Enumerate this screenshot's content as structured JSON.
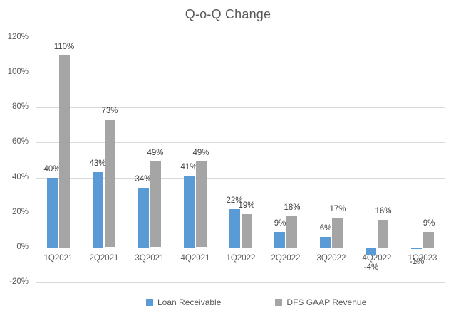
{
  "title": "Q-o-Q Change",
  "colors": {
    "series_blue": "#5B9BD5",
    "series_gray": "#A5A5A5",
    "gridline": "#D9D9D9",
    "axis_text": "#595959",
    "data_label_text": "#404040",
    "title_text": "#595959",
    "background": "#FFFFFF"
  },
  "chart_data": {
    "type": "bar",
    "title": "Q-o-Q Change",
    "xlabel": "",
    "ylabel": "",
    "categories": [
      "1Q2021",
      "2Q2021",
      "3Q2021",
      "4Q2021",
      "1Q2022",
      "2Q2022",
      "3Q2022",
      "4Q2022",
      "1Q2023"
    ],
    "series": [
      {
        "name": "Loan Receivable",
        "color": "#5B9BD5",
        "values": [
          40,
          43,
          34,
          41,
          22,
          9,
          6,
          -4,
          -1
        ]
      },
      {
        "name": "DFS GAAP Revenue",
        "color": "#A5A5A5",
        "values": [
          110,
          73,
          49,
          49,
          19,
          18,
          17,
          16,
          9
        ]
      }
    ],
    "value_suffix": "%",
    "data_labels": true,
    "ylim": [
      -20,
      120
    ],
    "ytick_step": 20,
    "yticks": [
      "120%",
      "100%",
      "80%",
      "60%",
      "40%",
      "20%",
      "0%",
      "-20%"
    ],
    "grid": true,
    "legend_position": "bottom"
  },
  "legend": {
    "items": [
      {
        "label": "Loan Receivable",
        "color": "#5B9BD5"
      },
      {
        "label": "DFS GAAP Revenue",
        "color": "#A5A5A5"
      }
    ]
  }
}
